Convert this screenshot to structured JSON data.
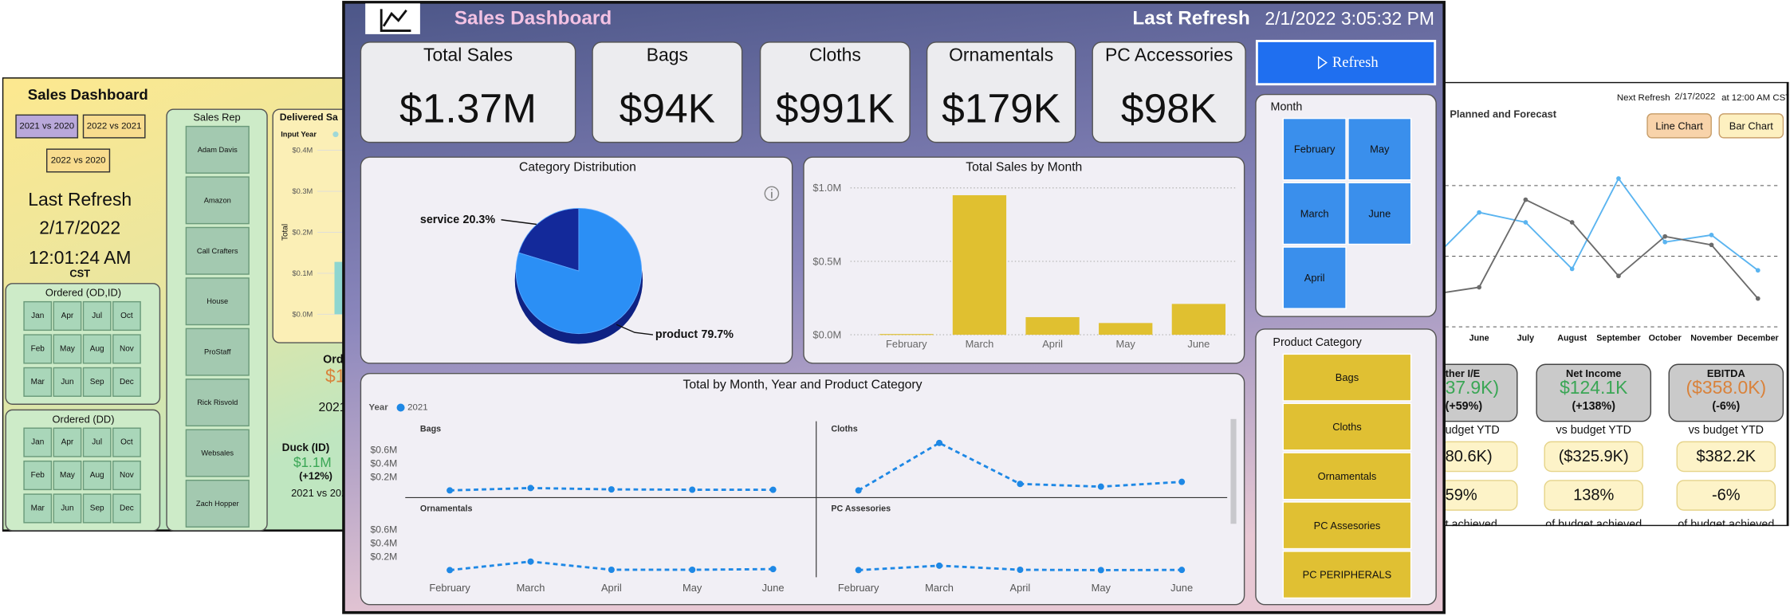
{
  "left_panel": {
    "title": "Sales Dashboard",
    "compare_buttons": [
      "2021 vs 2020",
      "2022 vs 2021",
      "2022 vs 2020"
    ],
    "last_refresh_label": "Last Refresh",
    "refresh_date": "2/17/2022",
    "refresh_time": "12:01:24 AM",
    "timezone": "CST",
    "ordered_od_id": {
      "title": "Ordered (OD,ID)",
      "months": [
        "Jan",
        "Apr",
        "Jul",
        "Oct",
        "Feb",
        "May",
        "Aug",
        "Nov",
        "Mar",
        "Jun",
        "Sep",
        "Dec"
      ]
    },
    "ordered_dd": {
      "title": "Ordered (DD)",
      "months": [
        "Jan",
        "Apr",
        "Jul",
        "Oct",
        "Feb",
        "May",
        "Aug",
        "Nov",
        "Mar",
        "Jun",
        "Sep",
        "Dec"
      ]
    },
    "sales_rep": {
      "title": "Sales Rep",
      "items": [
        "Adam Davis",
        "Amazon",
        "Call Crafters",
        "House",
        "ProStaff",
        "Rick Risvold",
        "Websales",
        "Zach Hopper"
      ]
    },
    "delivered": {
      "title": "Delivered Sa",
      "input_year": "Input Year",
      "axis_title": "Total",
      "ticks": [
        "$0.4M",
        "$0.3M",
        "$0.2M",
        "$0.1M",
        "$0.0M"
      ]
    },
    "fragments": [
      "Ord",
      "$1",
      "2021",
      "Duck (ID)",
      "$1.1M",
      "(+12%)",
      "2021 vs 202"
    ]
  },
  "main": {
    "title": "Sales Dashboard",
    "last_refresh_label": "Last Refresh",
    "last_refresh": "2/1/2022 3:05:32 PM",
    "kpis": [
      {
        "label": "Total Sales",
        "value": "$1.37M"
      },
      {
        "label": "Bags",
        "value": "$94K"
      },
      {
        "label": "Cloths",
        "value": "$991K"
      },
      {
        "label": "Ornamentals",
        "value": "$179K"
      },
      {
        "label": "PC Accessories",
        "value": "$98K"
      }
    ],
    "refresh_button": "Refresh",
    "month_slicer": {
      "title": "Month",
      "items": [
        "February",
        "May",
        "March",
        "June",
        "April"
      ]
    },
    "category_slicer": {
      "title": "Product Category",
      "items": [
        "Bags",
        "Cloths",
        "Ornamentals",
        "PC Assesories",
        "PC PERIPHERALS"
      ]
    }
  },
  "chart_data": [
    {
      "type": "pie",
      "title": "Category Distribution",
      "categories": [
        "service",
        "product"
      ],
      "values": [
        20.3,
        79.7
      ],
      "value_labels": [
        "20.3%",
        "79.7%"
      ],
      "colors": [
        "#13299a",
        "#2b8ff5"
      ]
    },
    {
      "type": "bar",
      "title": "Total Sales by Month",
      "categories": [
        "February",
        "March",
        "April",
        "May",
        "June"
      ],
      "values": [
        5000,
        950000,
        120000,
        80000,
        210000
      ],
      "color": "#e0c030",
      "ylim": [
        0,
        1000000
      ],
      "yticks": [
        {
          "value": 0,
          "label": "$0.0M"
        },
        {
          "value": 500000,
          "label": "$0.5M"
        },
        {
          "value": 1000000,
          "label": "$1.0M"
        }
      ],
      "grid": true
    },
    {
      "type": "line",
      "title": "Total by Month, Year and Product Category",
      "legend_title": "Year",
      "series": [
        {
          "name": "2021",
          "color": "#1e88e5"
        }
      ],
      "categories": [
        "February",
        "March",
        "April",
        "May",
        "June"
      ],
      "panels": [
        {
          "title": "Bags",
          "values": [
            5000,
            40000,
            20000,
            15000,
            14000
          ]
        },
        {
          "title": "Cloths",
          "values": [
            5000,
            700000,
            100000,
            60000,
            130000
          ]
        },
        {
          "title": "Ornamentals",
          "values": [
            5000,
            130000,
            10000,
            10000,
            20000
          ]
        },
        {
          "title": "PC Assesories",
          "values": [
            5000,
            70000,
            10000,
            5000,
            8000
          ]
        }
      ],
      "ylim": [
        0,
        700000
      ],
      "yticks": [
        {
          "value": 200000,
          "label": "$0.2M"
        },
        {
          "value": 400000,
          "label": "$0.4M"
        },
        {
          "value": 600000,
          "label": "$0.6M"
        }
      ]
    },
    {
      "type": "line",
      "title": "Planned and Forecast",
      "categories": [
        null,
        "June",
        "July",
        "August",
        "September",
        "October",
        "November",
        "December"
      ],
      "series": [
        {
          "color": "#5ab4f0",
          "values": [
            48,
            81,
            74,
            41,
            105,
            60,
            65,
            40
          ]
        },
        {
          "color": "#6b6b6b",
          "values": [
            23,
            28,
            90,
            74,
            36,
            64,
            58,
            20
          ]
        }
      ],
      "ylim": [
        0,
        110
      ],
      "ygrid": [
        0,
        50,
        100
      ],
      "grid": true
    }
  ],
  "right_panel": {
    "next_refresh_label": "Next Refresh",
    "next_refresh_date": "2/17/2022",
    "next_refresh_time": "at 12:00 AM CST",
    "buttons": [
      "Line Chart",
      "Bar Chart"
    ],
    "cards": [
      {
        "title": "ther I/E",
        "value": "37.9K)",
        "change": "(+59%)",
        "budget_label": "udget YTD",
        "budget_value": "80.6K)",
        "percent": "59%",
        "percent_label": "t achieved"
      },
      {
        "title": "Net Income",
        "value": "$124.1K",
        "change": "(+138%)",
        "budget_label": "vs budget YTD",
        "budget_value": "($325.9K)",
        "percent": "138%",
        "percent_label": "of budget achieved"
      },
      {
        "title": "EBITDA",
        "value": "($358.0K)",
        "change": "(-6%)",
        "budget_label": "vs budget YTD",
        "budget_value": "$382.2K",
        "percent": "-6%",
        "percent_label": "of budget achieved"
      }
    ]
  }
}
